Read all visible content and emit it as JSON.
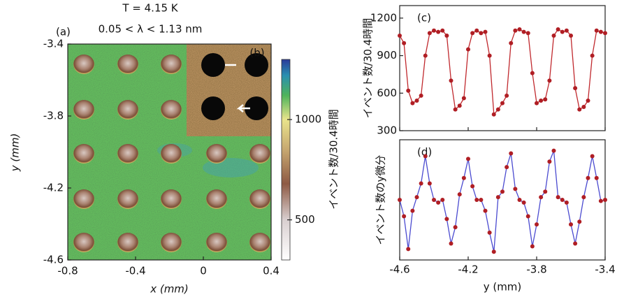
{
  "chart_data": [
    {
      "type": "heatmap",
      "panel_label": "(a)",
      "inset_label": "(b)",
      "title": "T = 4.15 K",
      "subtitle": "0.05 < λ < 1.13 nm",
      "xlabel": "x (mm)",
      "ylabel": "y (mm)",
      "xlim": [
        -0.8,
        0.4
      ],
      "xticks": [
        -0.8,
        -0.4,
        0,
        0.4
      ],
      "ylim": [
        -4.6,
        -3.4
      ],
      "yticks": [
        -4.6,
        -4.2,
        -3.8,
        -3.4
      ],
      "colorbar": {
        "label": "イベント数/30.4時間",
        "lim": [
          300,
          1300
        ],
        "ticks": [
          500,
          1000
        ]
      }
    },
    {
      "type": "line",
      "panel_label": "(c)",
      "ylabel": "イベント数/30.4時間",
      "xlim": [
        -4.6,
        -3.4
      ],
      "xticks": [
        -4.6,
        -4.2,
        -3.8,
        -3.4
      ],
      "ylim": [
        300,
        1300
      ],
      "yticks": [
        300,
        600,
        900,
        1200
      ],
      "x": [
        -4.6,
        -4.575,
        -4.55,
        -4.525,
        -4.5,
        -4.475,
        -4.45,
        -4.425,
        -4.4,
        -4.375,
        -4.35,
        -4.325,
        -4.3,
        -4.275,
        -4.25,
        -4.225,
        -4.2,
        -4.175,
        -4.15,
        -4.125,
        -4.1,
        -4.075,
        -4.05,
        -4.025,
        -4.0,
        -3.975,
        -3.95,
        -3.925,
        -3.9,
        -3.875,
        -3.85,
        -3.825,
        -3.8,
        -3.775,
        -3.75,
        -3.725,
        -3.7,
        -3.675,
        -3.65,
        -3.625,
        -3.6,
        -3.575,
        -3.55,
        -3.525,
        -3.5,
        -3.475,
        -3.45,
        -3.425,
        -3.4
      ],
      "series": [
        {
          "line_color": "#c0282d",
          "marker_color": "#b01e24",
          "values": [
            1060,
            1000,
            620,
            520,
            540,
            580,
            900,
            1080,
            1100,
            1090,
            1100,
            1060,
            700,
            470,
            500,
            560,
            950,
            1080,
            1100,
            1080,
            1090,
            900,
            430,
            470,
            520,
            580,
            1000,
            1100,
            1110,
            1090,
            1080,
            760,
            520,
            540,
            550,
            700,
            1060,
            1110,
            1090,
            1100,
            1060,
            640,
            470,
            490,
            540,
            900,
            1100,
            1090,
            1080
          ]
        }
      ]
    },
    {
      "type": "line",
      "panel_label": "(d)",
      "ylabel": "イベント数のy微分",
      "xlabel": "y (mm)",
      "xlim": [
        -4.6,
        -3.4
      ],
      "xticks": [
        -4.6,
        -4.2,
        -3.8,
        -3.4
      ],
      "ylim": [
        -1.1,
        1.1
      ],
      "x": [
        -4.6,
        -4.575,
        -4.55,
        -4.525,
        -4.5,
        -4.475,
        -4.45,
        -4.425,
        -4.4,
        -4.375,
        -4.35,
        -4.325,
        -4.3,
        -4.275,
        -4.25,
        -4.225,
        -4.2,
        -4.175,
        -4.15,
        -4.125,
        -4.1,
        -4.075,
        -4.05,
        -4.025,
        -4.0,
        -3.975,
        -3.95,
        -3.925,
        -3.9,
        -3.875,
        -3.85,
        -3.825,
        -3.8,
        -3.775,
        -3.75,
        -3.725,
        -3.7,
        -3.675,
        -3.65,
        -3.625,
        -3.6,
        -3.575,
        -3.55,
        -3.525,
        -3.5,
        -3.475,
        -3.45,
        -3.425,
        -3.4
      ],
      "series": [
        {
          "line_color": "#4a4ad0",
          "marker_color": "#b01e24",
          "values": [
            0.0,
            -0.3,
            -0.9,
            -0.2,
            0.05,
            0.3,
            0.8,
            0.3,
            0.0,
            -0.05,
            0.0,
            -0.35,
            -0.8,
            -0.5,
            0.1,
            0.4,
            0.75,
            0.25,
            0.0,
            0.0,
            -0.2,
            -0.6,
            -0.95,
            0.05,
            0.15,
            0.6,
            0.85,
            0.2,
            0.0,
            -0.05,
            -0.3,
            -0.85,
            -0.45,
            0.05,
            0.15,
            0.7,
            0.9,
            0.05,
            0.0,
            -0.05,
            -0.45,
            -0.8,
            -0.4,
            0.05,
            0.4,
            0.8,
            0.4,
            -0.02,
            0.0
          ]
        }
      ]
    }
  ]
}
